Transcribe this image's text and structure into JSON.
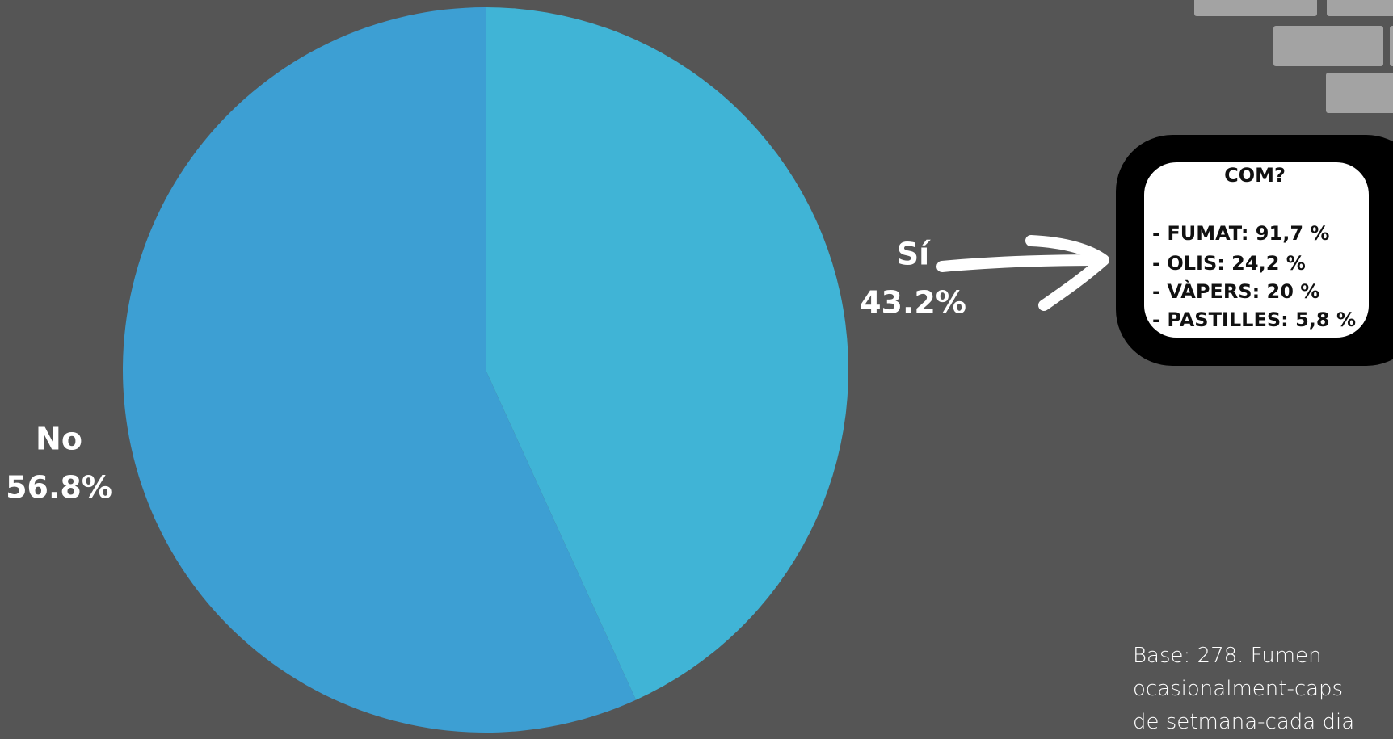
{
  "chart_data": {
    "type": "pie",
    "categories": [
      "Sí",
      "No"
    ],
    "values": [
      43.2,
      56.8
    ],
    "value_labels": [
      "43.2%",
      "56.8%"
    ],
    "colors": [
      "#40b4d6",
      "#3d9fd3"
    ],
    "start_angle": 0,
    "direction": "clockwise",
    "annotations": {
      "box_title": "COM?",
      "box_lines": [
        "- FUMAT: 91,7 %",
        "- OLIS: 24,2 %",
        "- VÀPERS: 20 %",
        "- PASTILLES: 5,8 %"
      ],
      "note": "Base: 278. Fumen ocasionalment-caps de setmana-cada dia"
    }
  }
}
